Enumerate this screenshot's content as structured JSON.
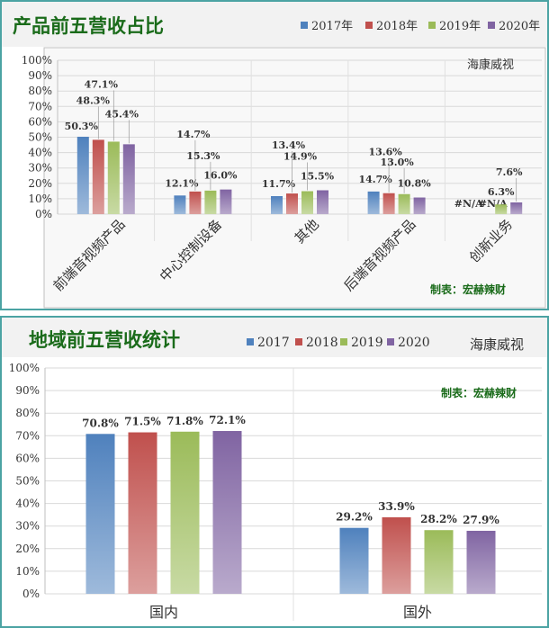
{
  "chart_data": [
    {
      "type": "bar",
      "title": "产品前五营收占比",
      "watermark": "海康威视",
      "credit": "制表：宏赫辣财",
      "categories": [
        "前端音视频产品",
        "中心控制设备",
        "其他",
        "后端音视频产品",
        "创新业务"
      ],
      "series": [
        {
          "name": "2017年",
          "color": "#4f81bd",
          "values": [
            50.3,
            12.1,
            11.7,
            14.7,
            null
          ],
          "labels": [
            "50.3%",
            "12.1%",
            "11.7%",
            "14.7%",
            "#N/A"
          ]
        },
        {
          "name": "2018年",
          "color": "#c0504d",
          "values": [
            48.3,
            14.7,
            13.4,
            13.6,
            null
          ],
          "labels": [
            "48.3%",
            "14.7%",
            "13.4%",
            "13.6%",
            "#N/A"
          ]
        },
        {
          "name": "2019年",
          "color": "#9bbb59",
          "values": [
            47.1,
            15.3,
            14.9,
            13.0,
            6.3
          ],
          "labels": [
            "47.1%",
            "15.3%",
            "14.9%",
            "13.0%",
            "6.3%"
          ]
        },
        {
          "name": "2020年",
          "color": "#8064a2",
          "values": [
            45.4,
            16.0,
            15.5,
            10.8,
            7.6
          ],
          "labels": [
            "45.4%",
            "16.0%",
            "15.5%",
            "10.8%",
            "7.6%"
          ]
        }
      ],
      "yticks": [
        "0%",
        "10%",
        "20%",
        "30%",
        "40%",
        "50%",
        "60%",
        "70%",
        "80%",
        "90%",
        "100%"
      ],
      "ylim": [
        0,
        100
      ],
      "grid": true,
      "legend_position": "top-right"
    },
    {
      "type": "bar",
      "title": "地域前五营收统计",
      "watermark": "海康威视",
      "credit": "制表：宏赫辣财",
      "categories": [
        "国内",
        "国外"
      ],
      "series": [
        {
          "name": "2017",
          "color": "#4f81bd",
          "values": [
            70.8,
            29.2
          ],
          "labels": [
            "70.8%",
            "29.2%"
          ]
        },
        {
          "name": "2018",
          "color": "#c0504d",
          "values": [
            71.5,
            33.9
          ],
          "labels": [
            "71.5%",
            "33.9%"
          ]
        },
        {
          "name": "2019",
          "color": "#9bbb59",
          "values": [
            71.8,
            28.2
          ],
          "labels": [
            "71.8%",
            "28.2%"
          ]
        },
        {
          "name": "2020",
          "color": "#8064a2",
          "values": [
            72.1,
            27.9
          ],
          "labels": [
            "72.1%",
            "27.9%"
          ]
        }
      ],
      "yticks": [
        "0%",
        "10%",
        "20%",
        "30%",
        "40%",
        "50%",
        "60%",
        "70%",
        "80%",
        "90%",
        "100%"
      ],
      "ylim": [
        0,
        100
      ],
      "grid": true,
      "legend_position": "top"
    }
  ]
}
